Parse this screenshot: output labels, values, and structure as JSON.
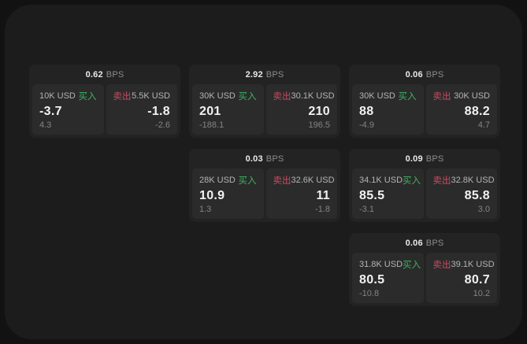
{
  "labels": {
    "bps": "BPS",
    "buy": "买入",
    "sell": "卖出"
  },
  "colors": {
    "buy_accent": "#3fb35f",
    "sell_accent": "#cf4a5e",
    "window_bg": "#1c1c1d",
    "card_bg": "#232324",
    "panel_bg": "#2b2b2c"
  },
  "cards": [
    {
      "bps": "0.62",
      "buy": {
        "size": "10K USD",
        "value": "-3.7",
        "delta": "4.3"
      },
      "sell": {
        "size": "5.5K USD",
        "value": "-1.8",
        "delta": "-2.6"
      }
    },
    {
      "bps": "2.92",
      "buy": {
        "size": "30K USD",
        "value": "201",
        "delta": "-188.1"
      },
      "sell": {
        "size": "30.1K USD",
        "value": "210",
        "delta": "196.5"
      }
    },
    {
      "bps": "0.06",
      "buy": {
        "size": "30K USD",
        "value": "88",
        "delta": "-4.9"
      },
      "sell": {
        "size": "30K USD",
        "value": "88.2",
        "delta": "4.7"
      }
    },
    {
      "bps": "0.03",
      "buy": {
        "size": "28K USD",
        "value": "10.9",
        "delta": "1.3"
      },
      "sell": {
        "size": "32.6K USD",
        "value": "11",
        "delta": "-1.8"
      }
    },
    {
      "bps": "0.09",
      "buy": {
        "size": "34.1K USD",
        "value": "85.5",
        "delta": "-3.1"
      },
      "sell": {
        "size": "32.8K USD",
        "value": "85.8",
        "delta": "3.0"
      }
    },
    {
      "bps": "0.06",
      "buy": {
        "size": "31.8K USD",
        "value": "80.5",
        "delta": "-10.8"
      },
      "sell": {
        "size": "39.1K USD",
        "value": "80.7",
        "delta": "10.2"
      }
    }
  ]
}
